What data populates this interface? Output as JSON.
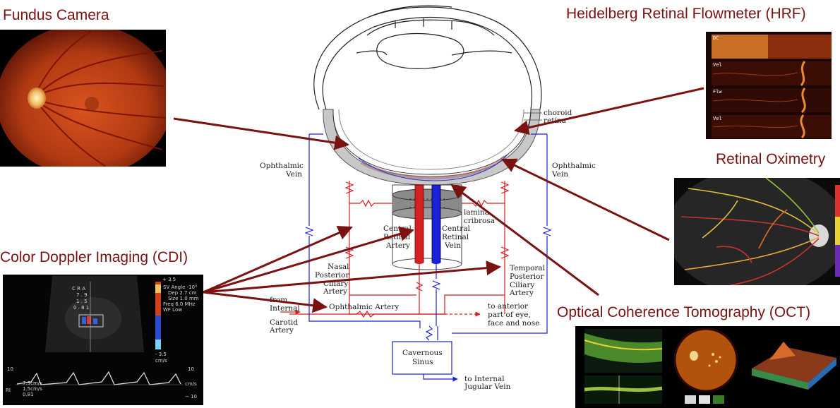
{
  "titles": {
    "fundus": "Fundus Camera",
    "hrf": "Heidelberg Retinal Flowmeter (HRF)",
    "oximetry": "Retinal Oximetry",
    "cdi": "Color Doppler Imaging (CDI)",
    "oct": "Optical Coherence Tomography (OCT)"
  },
  "labels": {
    "choroid": "choroid",
    "retina": "retina",
    "ophthalmic_vein_l1": "Ophthalmic",
    "ophthalmic_vein_l2": "Vein",
    "lamina_l1": "lamina",
    "lamina_l2": "cribrosa",
    "cra_l1": "Central",
    "cra_l2": "Retinal",
    "cra_l3": "Artery",
    "crv_l1": "Central",
    "crv_l2": "Retinal",
    "crv_l3": "Vein",
    "npca_l1": "Nasal",
    "npca_l2": "Posterior",
    "npca_l3": "Ciliary",
    "npca_l4": "Artery",
    "tpca_l1": "Temporal",
    "tpca_l2": "Posterior",
    "tpca_l3": "Ciliary",
    "tpca_l4": "Artery",
    "from_l1": "from",
    "from_l2": "Internal",
    "from_l3": "Carotid",
    "from_l4": "Artery",
    "ophthalmic_artery": "Ophthalmic Artery",
    "anterior_l1": "to anterior",
    "anterior_l2": "part of eye,",
    "anterior_l3": "face and nose",
    "cavernous_l1": "Cavernous",
    "cavernous_l2": "Sinus",
    "jugular_l1": "to Internal",
    "jugular_l2": "Jugular Vein"
  },
  "hrf_tabs": [
    "DC",
    "Vel",
    "Flw",
    "Vel"
  ],
  "cdi_text": {
    "cra": "C R A",
    "v1": "7 . 9",
    "v2": "1 . 5",
    "v3": "0 . 8 1",
    "sv1": "SV Angle -10°",
    "sv2": "Dep 2.7  cm",
    "sv3": "Size 1.0  mm",
    "sv4": "Freq 6.0  MHz",
    "sv5": "WF Low",
    "scale_top": "+ 3.5",
    "scale_bot": "- 3.5",
    "scale_unit": "cm/s",
    "left10": "10",
    "right10": "10",
    "rightm10": "− 10",
    "cms": "cm/s",
    "b1": "7.9cm/s",
    "b2": "1.5cm/s",
    "b3": "0.81",
    "ri": "RI"
  },
  "colors": {
    "title": "#7a1212",
    "arrow": "#7a1212",
    "artery": "#d42020",
    "vein": "#1a22d8",
    "tissue": "#c8c8c8"
  }
}
